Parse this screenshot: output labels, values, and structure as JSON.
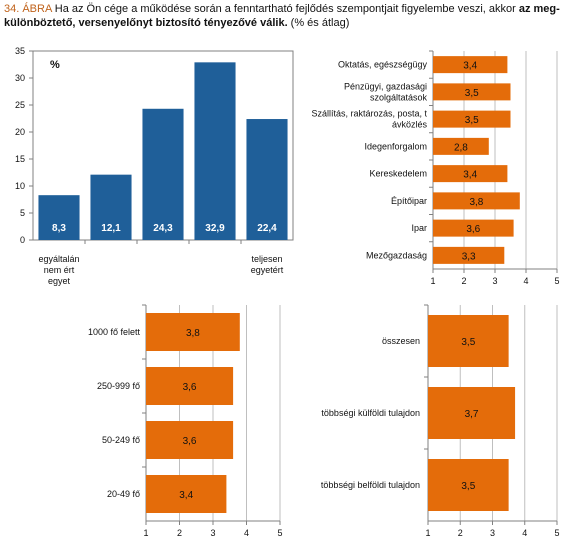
{
  "caption": {
    "number": "34. ÁBRA",
    "text_before": " Ha az Ön cége a működése során a fenntartható fejlődés szempontjait figyelembe veszi, akkor ",
    "bold": "az meg-különböztető, versenyelőnyt biztosító tényezővé válik.",
    "text_after": " (% és átlag)"
  },
  "colors": {
    "blue": "#1f5f99",
    "orange": "#e46c0a",
    "axis": "#808080",
    "grid": "#bfbfbf"
  },
  "chart_data": [
    {
      "type": "bar",
      "unit_label": "%",
      "categories": [
        "egyáltalán nem ért egyet",
        "",
        "",
        "",
        "teljesen egyetért"
      ],
      "values": [
        8.3,
        12.1,
        24.3,
        32.9,
        22.4
      ],
      "value_labels": [
        "8,3",
        "12,1",
        "24,3",
        "32,9",
        "22,4"
      ],
      "ylim": [
        0,
        35
      ],
      "yticks": [
        "0",
        "5",
        "10",
        "15",
        "20",
        "25",
        "30",
        "35"
      ],
      "grid": false
    },
    {
      "type": "bar",
      "orientation": "horizontal",
      "categories": [
        "Oktatás, egészségügy",
        "Pénzügyi, gazdasági szolgáltatások",
        "Szállítás, raktározás, posta, távközlés",
        "Idegenforgalom",
        "Kereskedelem",
        "Építőipar",
        "Ipar",
        "Mezőgazdaság"
      ],
      "values": [
        3.4,
        3.5,
        3.5,
        2.8,
        3.4,
        3.8,
        3.6,
        3.3
      ],
      "value_labels": [
        "3,4",
        "3,5",
        "3,5",
        "2,8",
        "3,4",
        "3,8",
        "3,6",
        "3,3"
      ],
      "xlim": [
        1,
        5
      ],
      "xticks": [
        "1",
        "2",
        "3",
        "4",
        "5"
      ],
      "grid": true
    },
    {
      "type": "bar",
      "orientation": "horizontal",
      "categories": [
        "1000 fő felett",
        "250-999 fő",
        "50-249 fő",
        "20-49 fő"
      ],
      "values": [
        3.8,
        3.6,
        3.6,
        3.4
      ],
      "value_labels": [
        "3,8",
        "3,6",
        "3,6",
        "3,4"
      ],
      "xlim": [
        1,
        5
      ],
      "xticks": [
        "1",
        "2",
        "3",
        "4",
        "5"
      ],
      "grid": true
    },
    {
      "type": "bar",
      "orientation": "horizontal",
      "categories": [
        "összesen",
        "többségi külföldi tulajdon",
        "többségi belföldi tulajdon"
      ],
      "values": [
        3.5,
        3.7,
        3.5
      ],
      "value_labels": [
        "3,5",
        "3,7",
        "3,5"
      ],
      "xlim": [
        1,
        5
      ],
      "xticks": [
        "1",
        "2",
        "3",
        "4",
        "5"
      ],
      "grid": true
    }
  ]
}
